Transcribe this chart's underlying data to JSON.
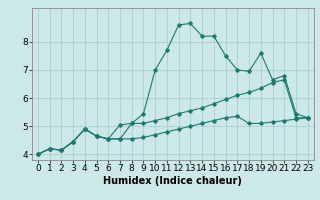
{
  "title": "",
  "xlabel": "Humidex (Indice chaleur)",
  "x": [
    0,
    1,
    2,
    3,
    4,
    5,
    6,
    7,
    8,
    9,
    10,
    11,
    12,
    13,
    14,
    15,
    16,
    17,
    18,
    19,
    20,
    21,
    22,
    23
  ],
  "line1": [
    4.0,
    4.2,
    4.15,
    4.45,
    4.9,
    4.65,
    4.55,
    4.55,
    5.1,
    5.45,
    7.0,
    7.7,
    8.6,
    8.65,
    8.2,
    8.2,
    7.5,
    7.0,
    6.95,
    7.6,
    6.65,
    6.8,
    5.45,
    5.3
  ],
  "line2": [
    4.0,
    4.2,
    4.15,
    4.45,
    4.9,
    4.65,
    4.55,
    5.05,
    5.1,
    5.1,
    5.2,
    5.3,
    5.45,
    5.55,
    5.65,
    5.8,
    5.95,
    6.1,
    6.2,
    6.35,
    6.55,
    6.65,
    5.3,
    5.3
  ],
  "line3": [
    4.0,
    4.2,
    4.15,
    4.45,
    4.9,
    4.65,
    4.55,
    4.55,
    4.55,
    4.6,
    4.7,
    4.8,
    4.9,
    5.0,
    5.1,
    5.2,
    5.3,
    5.35,
    5.1,
    5.1,
    5.15,
    5.2,
    5.25,
    5.3
  ],
  "line_color": "#1a7a6e",
  "bg_color": "#cce8e8",
  "grid_color": "#aacfcf",
  "ylim": [
    3.8,
    9.2
  ],
  "xlim": [
    -0.5,
    23.5
  ],
  "yticks": [
    4,
    5,
    6,
    7,
    8
  ],
  "xticks": [
    0,
    1,
    2,
    3,
    4,
    5,
    6,
    7,
    8,
    9,
    10,
    11,
    12,
    13,
    14,
    15,
    16,
    17,
    18,
    19,
    20,
    21,
    22,
    23
  ],
  "marker": "D",
  "marker_size": 1.8,
  "line_width": 0.8,
  "font_size": 6.5,
  "xlabel_fontsize": 7.0
}
